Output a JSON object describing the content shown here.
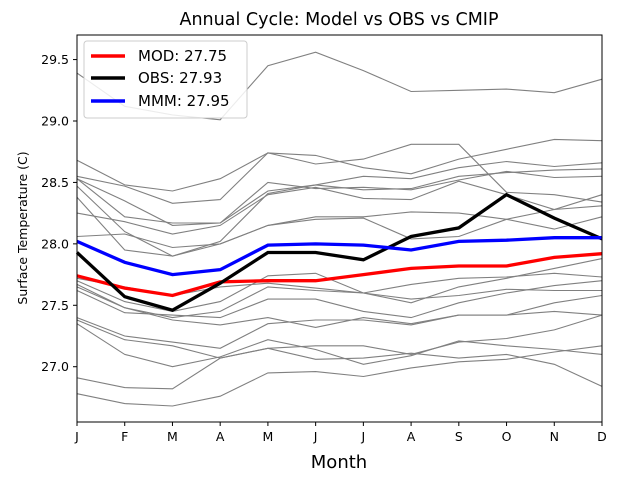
{
  "chart_data": {
    "type": "line",
    "title": "Annual Cycle: Model vs OBS vs CMIP",
    "xlabel": "Month",
    "ylabel": "Surface Temperature (C)",
    "categories": [
      "J",
      "F",
      "M",
      "A",
      "M",
      "J",
      "J",
      "A",
      "S",
      "O",
      "N",
      "D"
    ],
    "ylim": [
      26.55,
      29.7
    ],
    "yticks": [
      27.0,
      27.5,
      28.0,
      28.5,
      29.0,
      29.5
    ],
    "ytick_labels": [
      "27.0",
      "27.5",
      "28.0",
      "28.5",
      "29.0",
      "29.5"
    ],
    "legend_position": "top-left",
    "series": [
      {
        "name": "MOD",
        "legend_label": "MOD: 27.75",
        "color": "#ff0000",
        "emphasis": true,
        "values": [
          27.74,
          27.64,
          27.58,
          27.69,
          27.7,
          27.7,
          27.75,
          27.8,
          27.82,
          27.82,
          27.89,
          27.92
        ]
      },
      {
        "name": "OBS",
        "legend_label": "OBS: 27.93",
        "color": "#000000",
        "emphasis": true,
        "values": [
          27.93,
          27.57,
          27.46,
          27.68,
          27.93,
          27.93,
          27.87,
          28.06,
          28.13,
          28.4,
          28.21,
          28.04
        ]
      },
      {
        "name": "MMM",
        "legend_label": "MMM: 27.95",
        "color": "#0000ff",
        "emphasis": true,
        "values": [
          28.02,
          27.85,
          27.75,
          27.79,
          27.99,
          28.0,
          27.99,
          27.95,
          28.02,
          28.03,
          28.05,
          28.05
        ]
      }
    ],
    "cmip_models": {
      "color": "#808080",
      "series": [
        [
          29.39,
          29.12,
          29.05,
          29.01,
          29.45,
          29.56,
          29.41,
          29.24,
          29.25,
          29.26,
          29.23,
          29.34
        ],
        [
          28.68,
          28.48,
          28.43,
          28.53,
          28.74,
          28.72,
          28.62,
          28.57,
          28.69,
          28.77,
          28.85,
          28.84
        ],
        [
          28.55,
          28.47,
          28.33,
          28.36,
          28.74,
          28.65,
          28.69,
          28.81,
          28.81,
          28.42,
          28.4,
          28.34
        ],
        [
          28.53,
          28.22,
          28.17,
          28.17,
          28.5,
          28.45,
          28.46,
          28.44,
          28.52,
          28.59,
          28.54,
          28.55
        ],
        [
          28.53,
          28.35,
          28.15,
          28.17,
          28.43,
          28.48,
          28.55,
          28.53,
          28.62,
          28.67,
          28.63,
          28.66
        ],
        [
          28.47,
          28.1,
          27.9,
          28.02,
          28.41,
          28.48,
          28.44,
          28.45,
          28.55,
          28.58,
          28.6,
          28.61
        ],
        [
          28.38,
          27.95,
          27.9,
          28.0,
          28.15,
          28.22,
          28.22,
          28.26,
          28.25,
          28.2,
          28.12,
          28.22
        ],
        [
          28.25,
          28.18,
          28.08,
          28.15,
          28.4,
          28.46,
          28.37,
          28.36,
          28.51,
          28.4,
          28.28,
          28.4
        ],
        [
          28.06,
          28.08,
          27.97,
          28.0,
          28.15,
          28.2,
          28.21,
          28.04,
          28.06,
          28.2,
          28.28,
          28.31
        ],
        [
          27.72,
          27.65,
          27.58,
          27.65,
          27.68,
          27.64,
          27.6,
          27.67,
          27.72,
          27.73,
          27.76,
          27.73
        ],
        [
          27.7,
          27.53,
          27.45,
          27.53,
          27.74,
          27.76,
          27.6,
          27.52,
          27.65,
          27.72,
          27.8,
          27.88
        ],
        [
          27.67,
          27.48,
          27.4,
          27.45,
          27.65,
          27.62,
          27.6,
          27.55,
          27.58,
          27.63,
          27.62,
          27.62
        ],
        [
          27.62,
          27.44,
          27.42,
          27.4,
          27.55,
          27.55,
          27.45,
          27.4,
          27.52,
          27.6,
          27.66,
          27.7
        ],
        [
          27.65,
          27.48,
          27.38,
          27.34,
          27.4,
          27.32,
          27.4,
          27.35,
          27.42,
          27.42,
          27.52,
          27.58
        ],
        [
          27.4,
          27.25,
          27.2,
          27.15,
          27.35,
          27.38,
          27.38,
          27.34,
          27.42,
          27.42,
          27.45,
          27.42
        ],
        [
          27.38,
          27.22,
          27.17,
          27.07,
          27.15,
          27.17,
          27.17,
          27.1,
          27.2,
          27.23,
          27.3,
          27.42
        ],
        [
          27.35,
          27.1,
          27.0,
          27.08,
          27.22,
          27.14,
          27.02,
          27.09,
          27.21,
          27.17,
          27.14,
          27.1
        ],
        [
          26.91,
          26.83,
          26.82,
          27.07,
          27.15,
          27.06,
          27.07,
          27.11,
          27.07,
          27.1,
          27.02,
          26.84
        ],
        [
          26.78,
          26.7,
          26.68,
          26.76,
          26.95,
          26.96,
          26.92,
          26.99,
          27.04,
          27.06,
          27.12,
          27.17
        ]
      ]
    }
  }
}
